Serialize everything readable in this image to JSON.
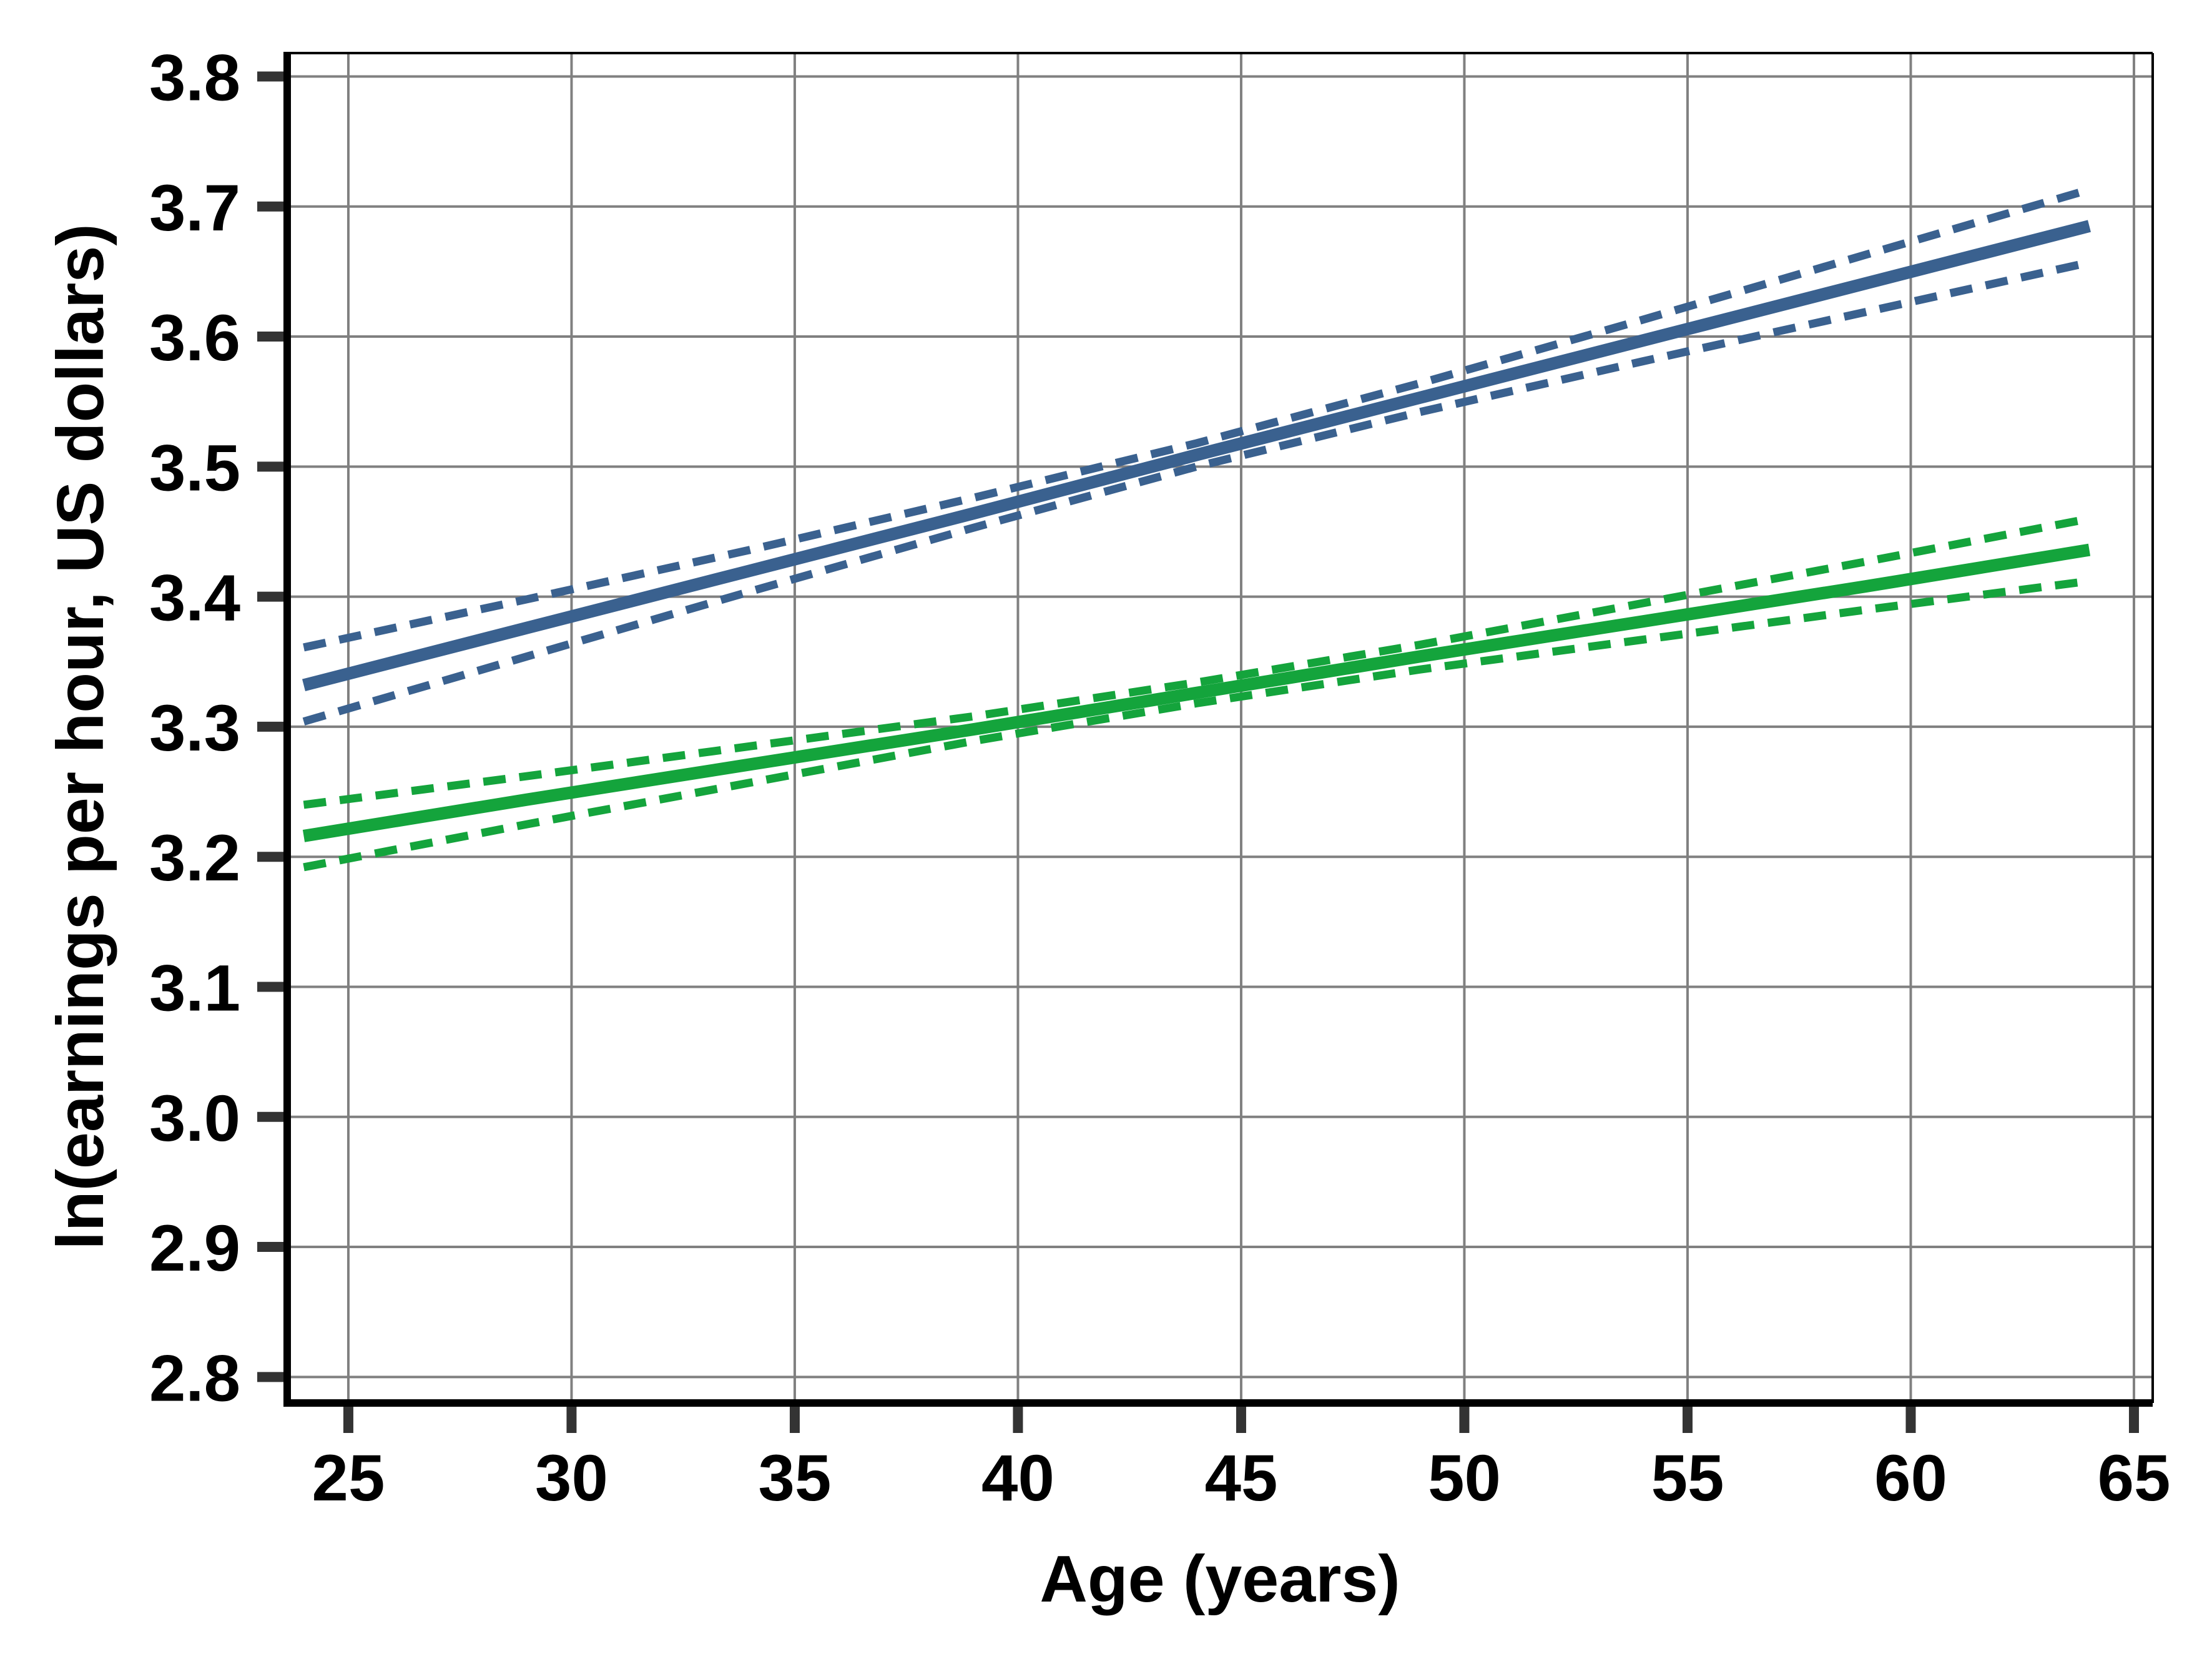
{
  "chart_data": {
    "type": "line",
    "title": "",
    "xlabel": "Age (years)",
    "ylabel": "ln(earnings per hour, US dollars)",
    "xlim": [
      23.63,
      65.42
    ],
    "ylim": [
      2.78,
      3.818
    ],
    "grid": true,
    "legend": "none",
    "x_ticks": [
      {
        "value": 25,
        "label": "25"
      },
      {
        "value": 30,
        "label": "30"
      },
      {
        "value": 35,
        "label": "35"
      },
      {
        "value": 40,
        "label": "40"
      },
      {
        "value": 45,
        "label": "45"
      },
      {
        "value": 50,
        "label": "50"
      },
      {
        "value": 55,
        "label": "55"
      },
      {
        "value": 60,
        "label": "60"
      },
      {
        "value": 65,
        "label": "65"
      }
    ],
    "y_ticks": [
      {
        "value": 2.8,
        "label": "2.8"
      },
      {
        "value": 2.9,
        "label": "2.9"
      },
      {
        "value": 3.0,
        "label": "3.0"
      },
      {
        "value": 3.1,
        "label": "3.1"
      },
      {
        "value": 3.2,
        "label": "3.2"
      },
      {
        "value": 3.3,
        "label": "3.3"
      },
      {
        "value": 3.4,
        "label": "3.4"
      },
      {
        "value": 3.5,
        "label": "3.5"
      },
      {
        "value": 3.6,
        "label": "3.6"
      },
      {
        "value": 3.7,
        "label": "3.7"
      },
      {
        "value": 3.8,
        "label": "3.8"
      }
    ],
    "colors": {
      "series_blue": "#3A618F",
      "series_green": "#14A43C",
      "grid": "#808080",
      "tick": "#333333",
      "axis": "#000000"
    },
    "series": [
      {
        "name": "blue-ci-upper",
        "group": "blue",
        "role": "ci-upper",
        "style": "dashed",
        "color_key": "series_blue",
        "x": [
          24,
          29,
          34,
          39,
          44,
          49,
          54,
          59,
          64
        ],
        "y": [
          3.361,
          3.398,
          3.436,
          3.476,
          3.518,
          3.564,
          3.613,
          3.663,
          3.713
        ]
      },
      {
        "name": "blue-ci-lower",
        "group": "blue",
        "role": "ci-lower",
        "style": "dashed",
        "color_key": "series_blue",
        "x": [
          24,
          29,
          34,
          39,
          44,
          49,
          54,
          59,
          64
        ],
        "y": [
          3.304,
          3.354,
          3.404,
          3.453,
          3.5,
          3.542,
          3.581,
          3.619,
          3.657
        ]
      },
      {
        "name": "blue-fit",
        "group": "blue",
        "role": "fit",
        "style": "solid",
        "color_key": "series_blue",
        "x": [
          24,
          29,
          34,
          39,
          44,
          49,
          54,
          59,
          64
        ],
        "y": [
          3.332,
          3.376,
          3.42,
          3.464,
          3.509,
          3.553,
          3.597,
          3.641,
          3.685
        ]
      },
      {
        "name": "green-ci-upper",
        "group": "green",
        "role": "ci-upper",
        "style": "dashed",
        "color_key": "series_green",
        "x": [
          24,
          29,
          34,
          39,
          44,
          49,
          54,
          59,
          64
        ],
        "y": [
          3.24,
          3.262,
          3.285,
          3.308,
          3.334,
          3.363,
          3.395,
          3.427,
          3.46
        ]
      },
      {
        "name": "green-ci-lower",
        "group": "green",
        "role": "ci-lower",
        "style": "dashed",
        "color_key": "series_green",
        "x": [
          24,
          29,
          34,
          39,
          44,
          49,
          54,
          59,
          64
        ],
        "y": [
          3.192,
          3.225,
          3.257,
          3.289,
          3.318,
          3.344,
          3.367,
          3.39,
          3.412
        ]
      },
      {
        "name": "green-fit",
        "group": "green",
        "role": "fit",
        "style": "solid",
        "color_key": "series_green",
        "x": [
          24,
          29,
          34,
          39,
          44,
          49,
          54,
          59,
          64
        ],
        "y": [
          3.216,
          3.244,
          3.271,
          3.298,
          3.326,
          3.354,
          3.381,
          3.408,
          3.436
        ]
      }
    ]
  }
}
